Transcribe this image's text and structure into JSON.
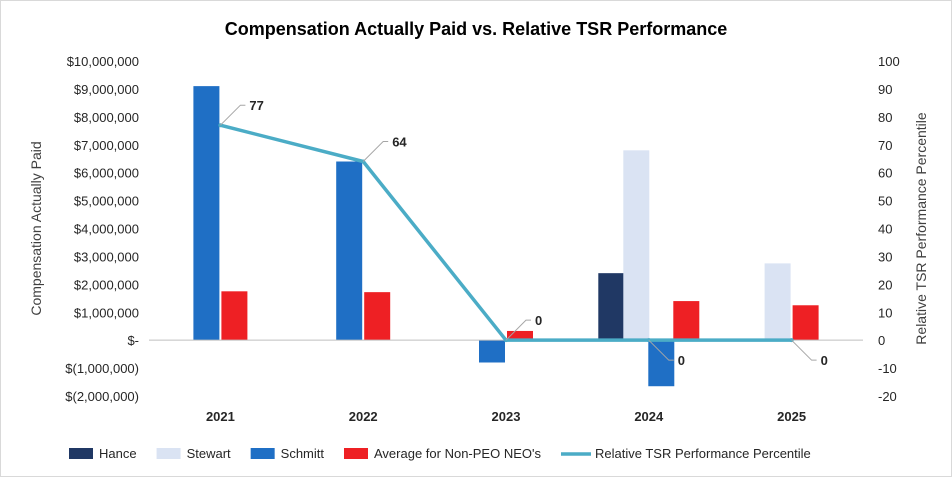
{
  "chart_data": {
    "type": "bar",
    "title": "Compensation Actually Paid vs. Relative TSR Performance",
    "ylabel": "Compensation Actually Paid",
    "y2label": "Relative TSR Performance Percentile",
    "categories": [
      "2021",
      "2022",
      "2023",
      "2024",
      "2025"
    ],
    "ylim": [
      -2000000,
      10000000
    ],
    "y2lim": [
      -20,
      100
    ],
    "y_ticks": [
      "$(2,000,000)",
      "$(1,000,000)",
      "$-",
      "$1,000,000",
      "$2,000,000",
      "$3,000,000",
      "$4,000,000",
      "$5,000,000",
      "$6,000,000",
      "$7,000,000",
      "$8,000,000",
      "$9,000,000",
      "$10,000,000"
    ],
    "y2_ticks": [
      "-20",
      "-10",
      "0",
      "10",
      "20",
      "30",
      "40",
      "50",
      "60",
      "70",
      "80",
      "90",
      "100"
    ],
    "series": [
      {
        "name": "Hance",
        "type": "bar",
        "color": "#203864",
        "values": [
          null,
          null,
          null,
          2400000,
          null
        ]
      },
      {
        "name": "Stewart",
        "type": "bar",
        "color": "#dae3f3",
        "values": [
          null,
          null,
          null,
          6800000,
          2750000
        ]
      },
      {
        "name": "Schmitt",
        "type": "bar",
        "color": "#1f6fc5",
        "values": [
          9100000,
          6400000,
          -800000,
          -1650000,
          null
        ]
      },
      {
        "name": "Average for Non-PEO NEO's",
        "type": "bar",
        "color": "#ee2024",
        "values": [
          1750000,
          1720000,
          330000,
          1400000,
          1250000
        ]
      },
      {
        "name": "Relative TSR Performance Percentile",
        "type": "line",
        "axis": "secondary",
        "color": "#4bacc6",
        "values": [
          77,
          64,
          0,
          0,
          0
        ],
        "labels": [
          "77",
          "64",
          "0",
          "0",
          "0"
        ]
      }
    ],
    "legend_position": "bottom",
    "grid": false
  }
}
